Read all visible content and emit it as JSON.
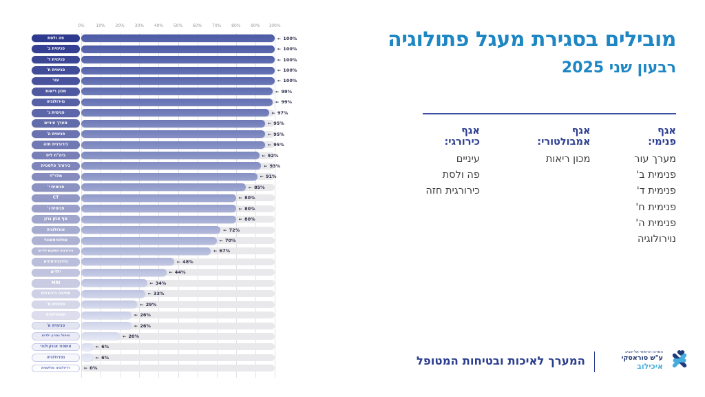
{
  "title": "מובילים בסגירת מעגל פתולוגיה",
  "subtitle": "רבעון שני 2025",
  "panel": {
    "columns": [
      {
        "heading": "אגף פנימי:",
        "items": [
          "מערך עור",
          "פנימית ב'",
          "פנימית ד'",
          "פנימית ח'",
          "פנימית ה'",
          "נוירולוגיה"
        ]
      },
      {
        "heading": "אגף אמבולטורי:",
        "items": [
          "מכון ריאות"
        ]
      },
      {
        "heading": "אגף כירורגי:",
        "items": [
          "עיניים",
          "פה ולסת",
          "כירורגית חזה"
        ]
      }
    ]
  },
  "footer": {
    "text": "המערך לאיכות ובטיחות המטופל",
    "logo_lines": [
      "המרכז הרפואי תל-אביב",
      "ע\"ש סוראסקי",
      "איכילוב"
    ]
  },
  "chart_data": {
    "type": "bar",
    "orientation": "horizontal",
    "title": "מובילים בסגירת מעגל פתולוגיה — רבעון שני 2025",
    "categories": [
      "פה ולסת",
      "פנימית ב'",
      "פנימית ד'",
      "פנימית ח'",
      "עור",
      "מכון ריאות",
      "נוירולוגיה",
      "פנימית ג'",
      "מערך עיניים",
      "פנימית ה'",
      "כירורגית חזה",
      "ביה\"ח ליס",
      "כירורג' פלסטית",
      "מלר\"ד",
      "פנימית י'",
      "CT",
      "פנימית ו'",
      "אף אוזן גרון",
      "אורולוגיה",
      "אולטרסאונד",
      "כירורגיה ושיקום ילדים",
      "נוירוכירורגיה",
      "ילדים",
      "MRI",
      "חטיבה כירורגית",
      "פנימית ט'",
      "המטולוגיה",
      "פנימית א'",
      "טיפול נמרץ ילדים",
      "אשפוז אונקולוגי",
      "נפרולוגיה",
      "רדיולוגיה פולשנית"
    ],
    "values": [
      100,
      100,
      100,
      100,
      100,
      99,
      99,
      97,
      95,
      95,
      95,
      92,
      93,
      91,
      85,
      80,
      80,
      80,
      72,
      70,
      67,
      48,
      44,
      34,
      33,
      29,
      26,
      26,
      20,
      6,
      6,
      0
    ],
    "value_suffix": "%",
    "value_arrow": "←",
    "xlim": [
      0,
      100
    ],
    "tick_labels": [
      "0%",
      "10%",
      "20%",
      "30%",
      "40%",
      "50%",
      "60%",
      "70%",
      "80%",
      "90%",
      "100%"
    ],
    "grid": true,
    "legend": false,
    "colors": {
      "bar_start": "#4c5ba6",
      "bar_end": "#e9ecf7",
      "pill_start": "#2e3a8e",
      "pill_end": "#fdfdff",
      "pill_light_text": "#5b6cb4",
      "pill_light_border": "#c6cce7",
      "track": "#e9e9eb",
      "value_text": "#2b2c47"
    }
  }
}
